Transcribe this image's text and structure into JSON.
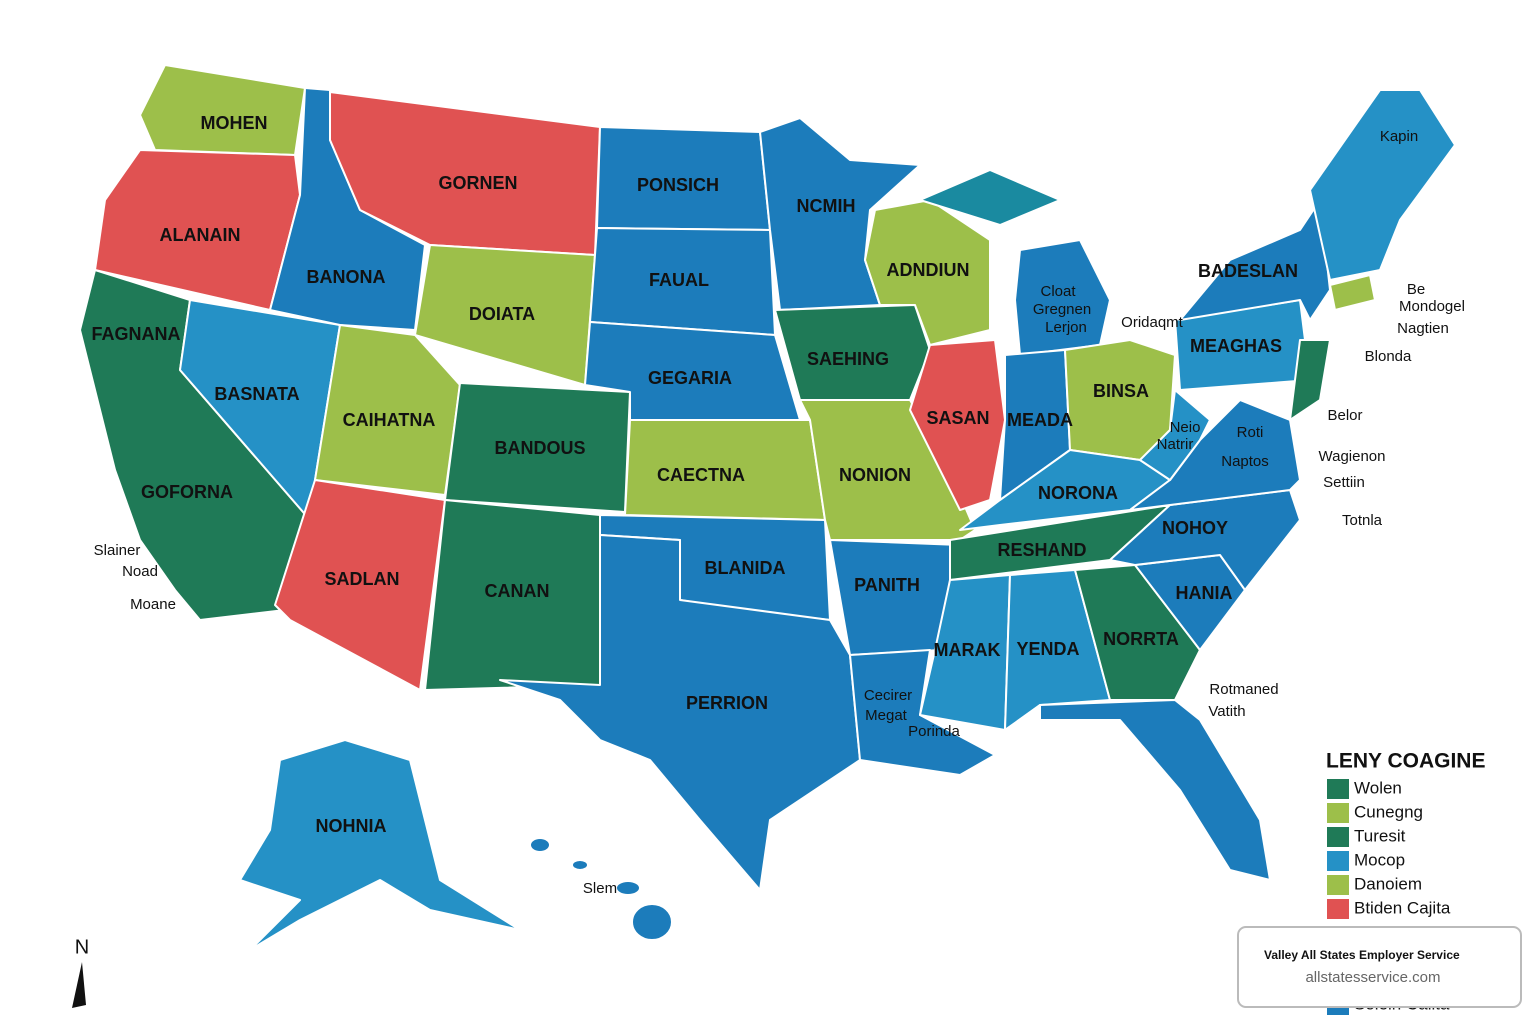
{
  "labels": [
    "MOHEN",
    "GORNEN",
    "ALANAIN",
    "PONSICH",
    "NCMIH",
    "BANONA",
    "FAUAL",
    "ADNDIUN",
    "BADESLAN",
    "Kapin",
    "DOIATA",
    "FAGNANA",
    "SAEHING",
    "Cloat",
    "Gregnen",
    "Lerjon",
    "Oridaqmt",
    "Be",
    "Mondogel",
    "Nagtien",
    "MEAGHAS",
    "Blonda",
    "BASNATA",
    "CAIHATNA",
    "GEGARIA",
    "BINSA",
    "SASAN",
    "MEADA",
    "Belor",
    "Neio",
    "Natrir",
    "Roti",
    "BANDOUS",
    "CAECTNA",
    "NONION",
    "NORONA",
    "Naptos",
    "Wagienon",
    "Settiin",
    "GOFORNA",
    "Totnla",
    "NOHOY",
    "RESHAND",
    "Slainer",
    "Noad",
    "Moane",
    "SADLAN",
    "CANAN",
    "BLANIDA",
    "PANITH",
    "HANIA",
    "NORRTA",
    "MARAK",
    "YENDA",
    "Cecirer",
    "Megat",
    "Porinda",
    "Rotmaned",
    "Vatith",
    "PERRION",
    "NOHNIA",
    "Slem"
  ],
  "legend": {
    "title": "LENY COAGINE",
    "items": [
      {
        "label": "Wolen",
        "color": "#1f7a57"
      },
      {
        "label": "Cunegng",
        "color": "#9dbf4a"
      },
      {
        "label": "Turesit",
        "color": "#1f7a57"
      },
      {
        "label": "Mocop",
        "color": "#2591c6"
      },
      {
        "label": "Danoiem",
        "color": "#9dbf4a"
      },
      {
        "label": "Btiden Cajita",
        "color": "#e05252"
      },
      {
        "label": "Soiein Caiita",
        "color": "#1c7cbb"
      }
    ]
  },
  "compass": "N",
  "watermark": {
    "title": "Valley All States Employer Service",
    "url": "allstatesservice.com"
  }
}
